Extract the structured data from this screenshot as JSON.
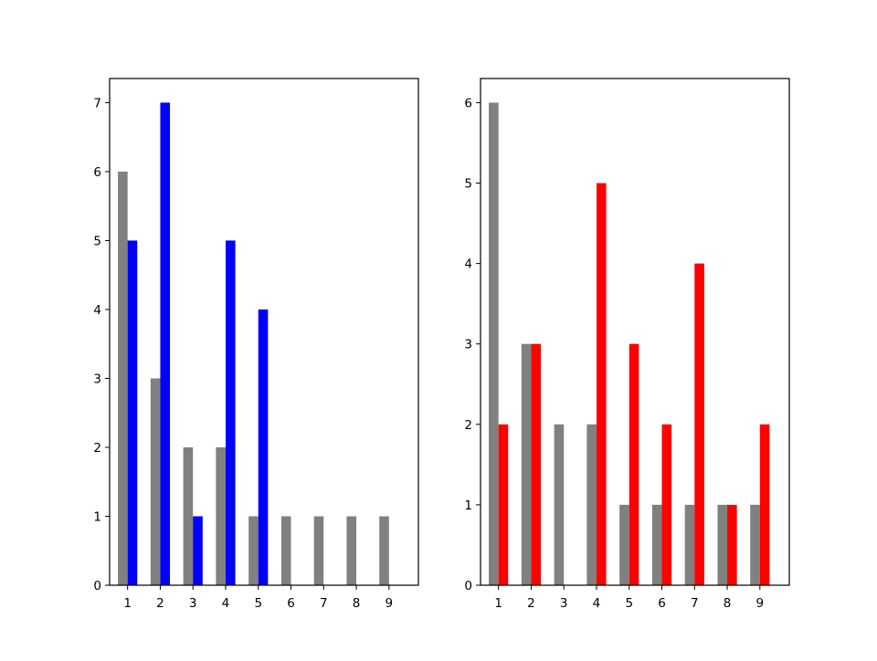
{
  "chart_data": [
    {
      "type": "bar",
      "categories": [
        "1",
        "2",
        "3",
        "4",
        "5",
        "6",
        "7",
        "8",
        "9"
      ],
      "series": [
        {
          "color": "#808080",
          "values": [
            6,
            3,
            2,
            2,
            1,
            1,
            1,
            1,
            1
          ]
        },
        {
          "color": "#0000ff",
          "values": [
            5,
            7,
            1,
            5,
            4,
            0,
            0,
            0,
            0
          ]
        }
      ],
      "yticks": [
        "0",
        "1",
        "2",
        "3",
        "4",
        "5",
        "6",
        "7"
      ],
      "ylim": [
        0,
        7.35
      ],
      "xlim": [
        0.45,
        9.9
      ],
      "grid": false,
      "title": "",
      "xlabel": "",
      "ylabel": ""
    },
    {
      "type": "bar",
      "categories": [
        "1",
        "2",
        "3",
        "4",
        "5",
        "6",
        "7",
        "8",
        "9"
      ],
      "series": [
        {
          "color": "#808080",
          "values": [
            6,
            3,
            2,
            2,
            1,
            1,
            1,
            1,
            1
          ]
        },
        {
          "color": "#ff0000",
          "values": [
            2,
            3,
            0,
            5,
            3,
            2,
            4,
            1,
            2
          ]
        }
      ],
      "yticks": [
        "0",
        "1",
        "2",
        "3",
        "4",
        "5",
        "6"
      ],
      "ylim": [
        0,
        6.3
      ],
      "xlim": [
        0.45,
        9.9
      ],
      "grid": false,
      "title": "",
      "xlabel": "",
      "ylabel": ""
    }
  ]
}
